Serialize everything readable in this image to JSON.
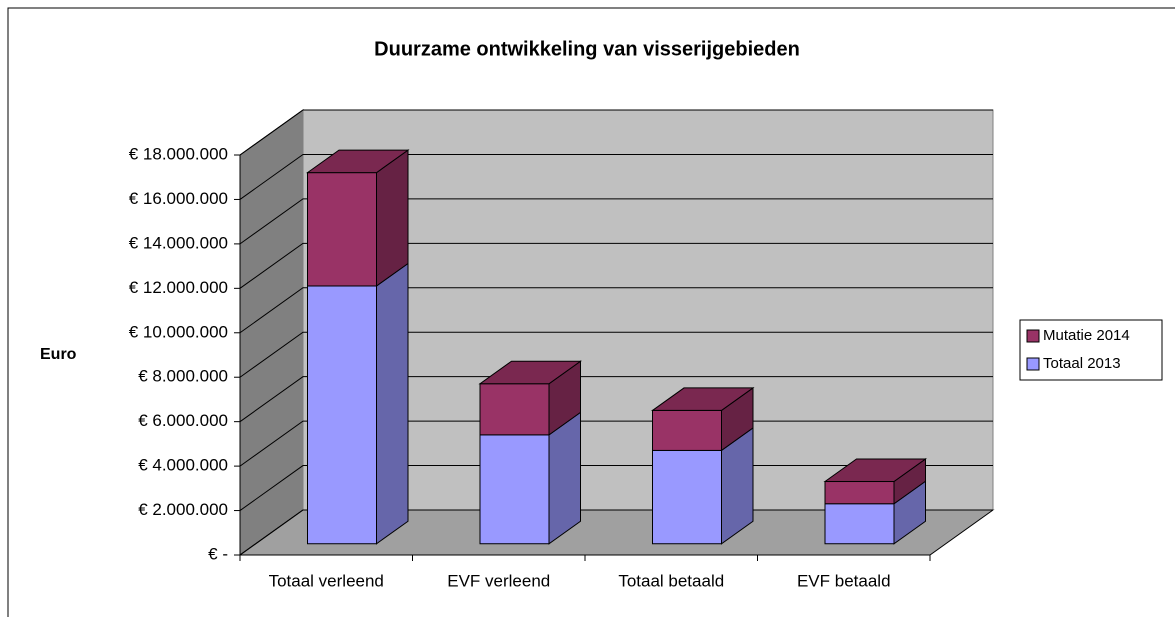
{
  "chart_data": {
    "type": "bar3d_stacked",
    "title": "Duurzame ontwikkeling van visserijgebieden",
    "y_label": "Euro",
    "categories": [
      "Totaal verleend",
      "EVF verleend",
      "Totaal betaald",
      "EVF betaald"
    ],
    "series": [
      {
        "name": "Totaal 2013",
        "color": "#9999ff",
        "side": "#6666aa",
        "top": "#b3b3ff",
        "values": [
          11600000,
          4900000,
          4200000,
          1800000
        ]
      },
      {
        "name": "Mutatie 2014",
        "color": "#993366",
        "side": "#662244",
        "top": "#7a2850",
        "values": [
          5100000,
          2300000,
          1800000,
          1000000
        ]
      }
    ],
    "ylim": [
      0,
      18000000
    ],
    "yticks": [
      {
        "value": 0,
        "label": "€ -"
      },
      {
        "value": 2000000,
        "label": "€ 2.000.000"
      },
      {
        "value": 4000000,
        "label": "€ 4.000.000"
      },
      {
        "value": 6000000,
        "label": "€ 6.000.000"
      },
      {
        "value": 8000000,
        "label": "€ 8.000.000"
      },
      {
        "value": 10000000,
        "label": "€ 10.000.000"
      },
      {
        "value": 12000000,
        "label": "€ 12.000.000"
      },
      {
        "value": 14000000,
        "label": "€ 14.000.000"
      },
      {
        "value": 16000000,
        "label": "€ 16.000.000"
      },
      {
        "value": 18000000,
        "label": "€ 18.000.000"
      }
    ],
    "grid": true
  }
}
